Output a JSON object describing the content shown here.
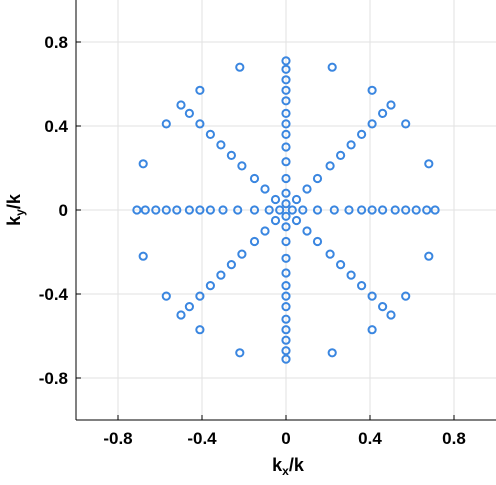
{
  "chart_data": {
    "type": "scatter",
    "xlabel": "k_x/k",
    "ylabel": "k_y/k",
    "xlabel_main": "k",
    "xlabel_sub": "x",
    "xlabel_tail": "/k",
    "ylabel_main": "k",
    "ylabel_sub": "y",
    "ylabel_tail": "/k",
    "xlim": [
      -1.0,
      1.0
    ],
    "ylim": [
      -1.0,
      1.0
    ],
    "xticks": [
      -0.8,
      -0.4,
      0,
      0.4,
      0.8
    ],
    "yticks": [
      -0.8,
      -0.4,
      0,
      0.4,
      0.8
    ],
    "xtick_labels": [
      "-0.8",
      "-0.4",
      "0",
      "0.4",
      "0.8"
    ],
    "ytick_labels": [
      "-0.8",
      "-0.4",
      "0",
      "0.4",
      "0.8"
    ],
    "grid": true,
    "marker": "open-circle",
    "marker_color": "#3a86e0",
    "series": [
      {
        "points": [
          [
            0.71,
            0
          ],
          [
            0.67,
            0
          ],
          [
            0.62,
            0
          ],
          [
            0.57,
            0
          ],
          [
            0.52,
            0
          ],
          [
            0.46,
            0
          ],
          [
            0.41,
            0
          ],
          [
            0.36,
            0
          ],
          [
            0.3,
            0
          ],
          [
            0.23,
            0
          ],
          [
            0.15,
            0
          ],
          [
            0.08,
            0
          ],
          [
            0.03,
            0
          ],
          [
            -0.71,
            0
          ],
          [
            -0.67,
            0
          ],
          [
            -0.62,
            0
          ],
          [
            -0.57,
            0
          ],
          [
            -0.52,
            0
          ],
          [
            -0.46,
            0
          ],
          [
            -0.41,
            0
          ],
          [
            -0.36,
            0
          ],
          [
            -0.3,
            0
          ],
          [
            -0.23,
            0
          ],
          [
            -0.15,
            0
          ],
          [
            -0.08,
            0
          ],
          [
            -0.03,
            0
          ],
          [
            0,
            0.71
          ],
          [
            0,
            0.67
          ],
          [
            0,
            0.62
          ],
          [
            0,
            0.57
          ],
          [
            0,
            0.52
          ],
          [
            0,
            0.46
          ],
          [
            0,
            0.41
          ],
          [
            0,
            0.36
          ],
          [
            0,
            0.3
          ],
          [
            0,
            0.23
          ],
          [
            0,
            0.15
          ],
          [
            0,
            0.08
          ],
          [
            0,
            0.03
          ],
          [
            0,
            -0.71
          ],
          [
            0,
            -0.67
          ],
          [
            0,
            -0.62
          ],
          [
            0,
            -0.57
          ],
          [
            0,
            -0.52
          ],
          [
            0,
            -0.46
          ],
          [
            0,
            -0.41
          ],
          [
            0,
            -0.36
          ],
          [
            0,
            -0.3
          ],
          [
            0,
            -0.23
          ],
          [
            0,
            -0.15
          ],
          [
            0,
            -0.08
          ],
          [
            0,
            -0.03
          ],
          [
            0.46,
            0.46
          ],
          [
            0.41,
            0.41
          ],
          [
            0.36,
            0.36
          ],
          [
            0.31,
            0.31
          ],
          [
            0.26,
            0.26
          ],
          [
            0.21,
            0.21
          ],
          [
            0.15,
            0.15
          ],
          [
            0.1,
            0.1
          ],
          [
            0.05,
            0.05
          ],
          [
            -0.46,
            0.46
          ],
          [
            -0.41,
            0.41
          ],
          [
            -0.36,
            0.36
          ],
          [
            -0.31,
            0.31
          ],
          [
            -0.26,
            0.26
          ],
          [
            -0.21,
            0.21
          ],
          [
            -0.15,
            0.15
          ],
          [
            -0.1,
            0.1
          ],
          [
            -0.05,
            0.05
          ],
          [
            0.46,
            -0.46
          ],
          [
            0.41,
            -0.41
          ],
          [
            0.36,
            -0.36
          ],
          [
            0.31,
            -0.31
          ],
          [
            0.26,
            -0.26
          ],
          [
            0.21,
            -0.21
          ],
          [
            0.15,
            -0.15
          ],
          [
            0.1,
            -0.1
          ],
          [
            0.05,
            -0.05
          ],
          [
            -0.46,
            -0.46
          ],
          [
            -0.41,
            -0.41
          ],
          [
            -0.36,
            -0.36
          ],
          [
            -0.31,
            -0.31
          ],
          [
            -0.26,
            -0.26
          ],
          [
            -0.21,
            -0.21
          ],
          [
            -0.15,
            -0.15
          ],
          [
            -0.1,
            -0.1
          ],
          [
            -0.05,
            -0.05
          ],
          [
            0.5,
            0.5
          ],
          [
            -0.5,
            0.5
          ],
          [
            0.5,
            -0.5
          ],
          [
            -0.5,
            -0.5
          ],
          [
            0.22,
            0.68
          ],
          [
            -0.22,
            0.68
          ],
          [
            0.22,
            -0.68
          ],
          [
            -0.22,
            -0.68
          ],
          [
            0.68,
            0.22
          ],
          [
            -0.68,
            0.22
          ],
          [
            0.68,
            -0.22
          ],
          [
            -0.68,
            -0.22
          ],
          [
            0.41,
            0.57
          ],
          [
            -0.41,
            0.57
          ],
          [
            0.41,
            -0.57
          ],
          [
            -0.41,
            -0.57
          ],
          [
            0.57,
            0.41
          ],
          [
            -0.57,
            0.41
          ],
          [
            0.57,
            -0.41
          ],
          [
            -0.57,
            -0.41
          ]
        ]
      }
    ]
  }
}
